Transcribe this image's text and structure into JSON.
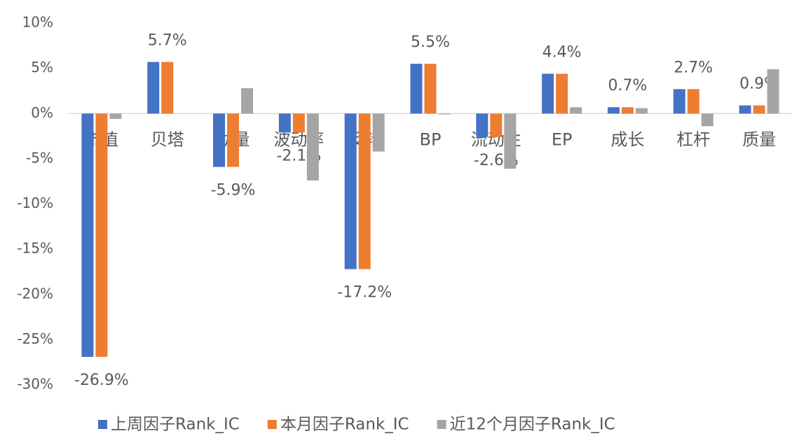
{
  "chart_data": {
    "type": "bar",
    "categories": [
      "市值",
      "贝塔",
      "动量",
      "波动率",
      "反转",
      "BP",
      "流动性",
      "EP",
      "成长",
      "杠杆",
      "质量"
    ],
    "series": [
      {
        "name": "上周因子Rank_IC",
        "color": "#4472c4",
        "values": [
          -26.9,
          5.7,
          -5.9,
          -2.1,
          -17.2,
          5.5,
          -2.6,
          4.4,
          0.7,
          2.7,
          0.9
        ]
      },
      {
        "name": "本月因子Rank_IC",
        "color": "#ed7d31",
        "values": [
          -26.9,
          5.7,
          -5.9,
          -2.1,
          -17.2,
          5.5,
          -2.6,
          4.4,
          0.7,
          2.7,
          0.9
        ],
        "value_labels": [
          "-26.9%",
          "5.7%",
          "-5.9%",
          "-2.1%",
          "-17.2%",
          "5.5%",
          "-2.6%",
          "4.4%",
          "0.7%",
          "2.7%",
          "0.9%"
        ]
      },
      {
        "name": "近12个月因子Rank_IC",
        "color": "#a5a5a5",
        "values": [
          -0.6,
          0,
          2.8,
          -7.4,
          -4.2,
          -0.1,
          -6.1,
          0.7,
          0.6,
          -1.4,
          4.9
        ]
      }
    ],
    "ylim": [
      -30,
      10
    ],
    "yticks": [
      {
        "value": -30,
        "label": "-30%"
      },
      {
        "value": -25,
        "label": "-25%"
      },
      {
        "value": -20,
        "label": "-20%"
      },
      {
        "value": -15,
        "label": "-15%"
      },
      {
        "value": -10,
        "label": "-10%"
      },
      {
        "value": -5,
        "label": "-5%"
      },
      {
        "value": 0,
        "label": "0%"
      },
      {
        "value": 5,
        "label": "5%"
      },
      {
        "value": 10,
        "label": "10%"
      }
    ],
    "grid": false,
    "legend": "bottom"
  }
}
